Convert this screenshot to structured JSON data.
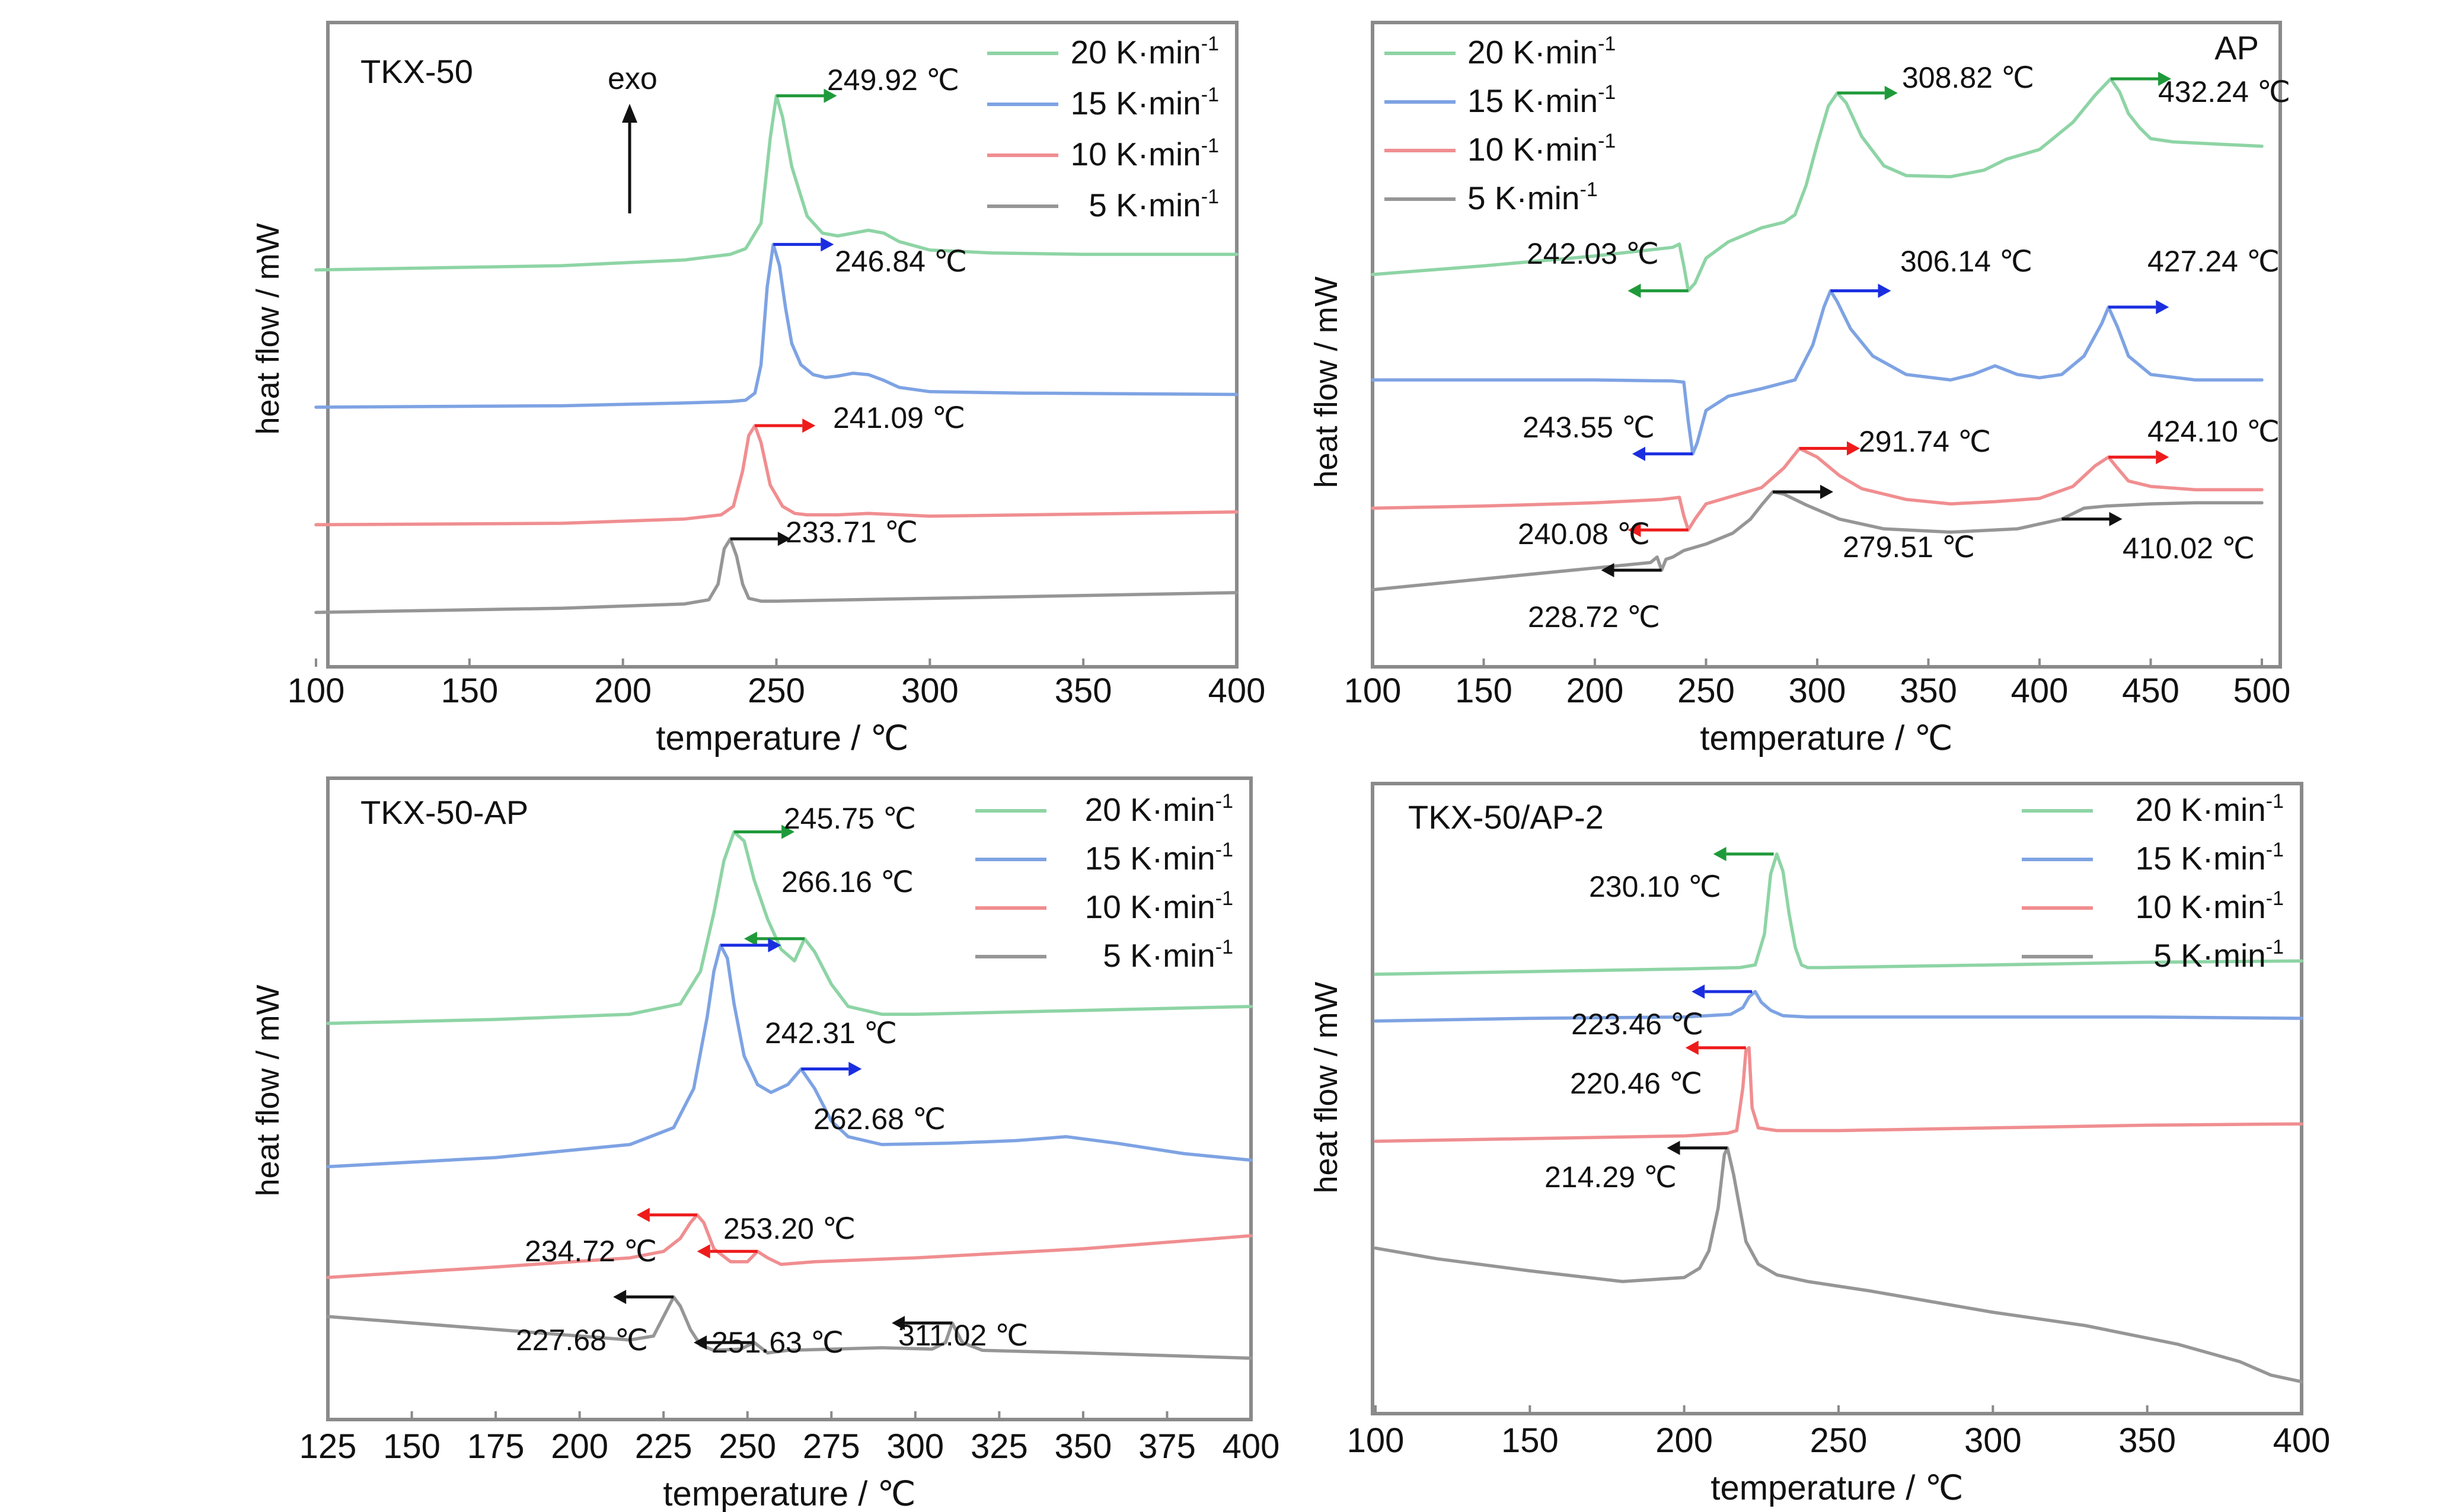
{
  "chart_data": [
    {
      "type": "line",
      "title": "TKX-50",
      "xlabel": "temperature / ℃",
      "ylabel": "heat flow / mW",
      "xlim": [
        100,
        400
      ],
      "xticks": [
        100,
        150,
        200,
        250,
        300,
        350,
        400
      ],
      "legend_position": "top-right",
      "exo_label": "exo",
      "series": [
        {
          "name": "20 K·min-1",
          "color": "#8ed4a5",
          "x": [
            100,
            180,
            220,
            235,
            240,
            245,
            248,
            250,
            252,
            255,
            260,
            265,
            270,
            275,
            280,
            285,
            290,
            300,
            320,
            350,
            400
          ],
          "y": [
            2.72,
            2.75,
            2.79,
            2.83,
            2.87,
            3.05,
            3.65,
            3.95,
            3.8,
            3.45,
            3.1,
            2.98,
            2.96,
            2.98,
            3.0,
            2.98,
            2.92,
            2.86,
            2.84,
            2.83,
            2.83
          ]
        },
        {
          "name": "15 K·min-1",
          "color": "#7ea3e3",
          "x": [
            100,
            180,
            220,
            235,
            240,
            243,
            245,
            247,
            249,
            251,
            253,
            255,
            258,
            262,
            266,
            270,
            275,
            280,
            285,
            290,
            300,
            330,
            400
          ],
          "y": [
            1.75,
            1.76,
            1.78,
            1.79,
            1.8,
            1.85,
            2.05,
            2.6,
            2.9,
            2.75,
            2.45,
            2.2,
            2.05,
            1.98,
            1.96,
            1.97,
            1.99,
            1.98,
            1.94,
            1.89,
            1.86,
            1.85,
            1.84
          ]
        },
        {
          "name": "10 K·min-1",
          "color": "#f08e90",
          "x": [
            100,
            180,
            220,
            232,
            236,
            239,
            241,
            243,
            245,
            248,
            252,
            256,
            260,
            270,
            280,
            300,
            400
          ],
          "y": [
            0.92,
            0.93,
            0.96,
            0.99,
            1.05,
            1.3,
            1.55,
            1.62,
            1.5,
            1.2,
            1.05,
            1.0,
            0.99,
            0.99,
            1.0,
            0.98,
            1.01
          ]
        },
        {
          "name": "5 K·min-1",
          "color": "#969696",
          "x": [
            100,
            180,
            220,
            228,
            231,
            233,
            235,
            237,
            239,
            241,
            245,
            250,
            300,
            400
          ],
          "y": [
            0.3,
            0.33,
            0.36,
            0.39,
            0.5,
            0.75,
            0.82,
            0.7,
            0.5,
            0.4,
            0.38,
            0.38,
            0.4,
            0.44
          ]
        }
      ],
      "annotations": [
        {
          "text": "249.92 ℃",
          "x": 250,
          "y": 3.95,
          "series": "20 K·min-1"
        },
        {
          "text": "246.84 ℃",
          "x": 249,
          "y": 2.9,
          "series": "15 K·min-1"
        },
        {
          "text": "241.09 ℃",
          "x": 243,
          "y": 1.62,
          "series": "10 K·min-1"
        },
        {
          "text": "233.71 ℃",
          "x": 235,
          "y": 0.82,
          "series": "5 K·min-1"
        }
      ]
    },
    {
      "type": "line",
      "title": "AP",
      "xlabel": "temperature / ℃",
      "ylabel": "heat flow / mW",
      "xlim": [
        100,
        500
      ],
      "xticks": [
        100,
        150,
        200,
        250,
        300,
        350,
        400,
        450,
        500
      ],
      "legend_position": "top-left",
      "series": [
        {
          "name": "20 K·min-1",
          "color": "#8ed4a5",
          "x": [
            100,
            150,
            200,
            235,
            238,
            240,
            242,
            245,
            250,
            260,
            275,
            285,
            290,
            295,
            300,
            305,
            309,
            313,
            320,
            330,
            340,
            360,
            375,
            385,
            400,
            415,
            425,
            432,
            436,
            440,
            445,
            450,
            460,
            480,
            500
          ],
          "y": [
            2.9,
            2.98,
            3.07,
            3.15,
            3.18,
            2.98,
            2.75,
            2.82,
            3.05,
            3.2,
            3.33,
            3.38,
            3.45,
            3.72,
            4.1,
            4.45,
            4.57,
            4.48,
            4.17,
            3.9,
            3.81,
            3.8,
            3.86,
            3.96,
            4.05,
            4.3,
            4.55,
            4.7,
            4.58,
            4.38,
            4.25,
            4.15,
            4.12,
            4.1,
            4.08
          ]
        },
        {
          "name": "15 K·min-1",
          "color": "#7ea3e3",
          "x": [
            100,
            150,
            200,
            235,
            240,
            242,
            244,
            246,
            250,
            260,
            275,
            290,
            298,
            303,
            306,
            309,
            315,
            325,
            340,
            360,
            370,
            380,
            390,
            400,
            410,
            420,
            428,
            431,
            435,
            440,
            450,
            470,
            500
          ],
          "y": [
            1.93,
            1.93,
            1.93,
            1.92,
            1.91,
            1.55,
            1.25,
            1.35,
            1.65,
            1.78,
            1.85,
            1.93,
            2.25,
            2.6,
            2.75,
            2.65,
            2.4,
            2.15,
            1.98,
            1.93,
            1.98,
            2.06,
            1.98,
            1.95,
            1.98,
            2.15,
            2.45,
            2.6,
            2.42,
            2.15,
            1.98,
            1.93,
            1.93
          ]
        },
        {
          "name": "10 K·min-1",
          "color": "#f08e90",
          "x": [
            100,
            150,
            200,
            230,
            238,
            240,
            242,
            245,
            250,
            260,
            275,
            285,
            292,
            300,
            310,
            320,
            340,
            360,
            380,
            400,
            415,
            425,
            431,
            435,
            440,
            450,
            470,
            500
          ],
          "y": [
            0.75,
            0.77,
            0.8,
            0.83,
            0.85,
            0.68,
            0.55,
            0.65,
            0.79,
            0.85,
            0.94,
            1.12,
            1.3,
            1.22,
            1.05,
            0.93,
            0.83,
            0.79,
            0.81,
            0.84,
            0.95,
            1.14,
            1.22,
            1.12,
            1.0,
            0.95,
            0.92,
            0.92
          ]
        },
        {
          "name": "5 K·min-1",
          "color": "#969696",
          "x": [
            100,
            150,
            200,
            225,
            228,
            230,
            232,
            235,
            240,
            250,
            262,
            270,
            275,
            280,
            285,
            295,
            310,
            330,
            360,
            390,
            410,
            420,
            430,
            450,
            470,
            500
          ],
          "y": [
            0.0,
            0.1,
            0.2,
            0.25,
            0.3,
            0.18,
            0.28,
            0.3,
            0.36,
            0.42,
            0.52,
            0.65,
            0.78,
            0.9,
            0.88,
            0.78,
            0.65,
            0.56,
            0.53,
            0.56,
            0.65,
            0.75,
            0.77,
            0.79,
            0.8,
            0.8
          ]
        }
      ],
      "annotations": [
        {
          "text": "308.82 ℃",
          "x": 309,
          "y": 4.57,
          "series": "20 K·min-1"
        },
        {
          "text": "432.24 ℃",
          "x": 432,
          "y": 4.7,
          "series": "20 K·min-1"
        },
        {
          "text": "242.03 ℃",
          "x": 242,
          "y": 2.75,
          "series": "20 K·min-1"
        },
        {
          "text": "306.14 ℃",
          "x": 306,
          "y": 2.75,
          "series": "15 K·min-1"
        },
        {
          "text": "427.24 ℃",
          "x": 431,
          "y": 2.6,
          "series": "15 K·min-1"
        },
        {
          "text": "243.55 ℃",
          "x": 244,
          "y": 1.25,
          "series": "15 K·min-1"
        },
        {
          "text": "291.74 ℃",
          "x": 292,
          "y": 1.3,
          "series": "10 K·min-1"
        },
        {
          "text": "424.10 ℃",
          "x": 431,
          "y": 1.22,
          "series": "10 K·min-1"
        },
        {
          "text": "240.08 ℃",
          "x": 242,
          "y": 0.55,
          "series": "10 K·min-1"
        },
        {
          "text": "279.51 ℃",
          "x": 280,
          "y": 0.9,
          "series": "5 K·min-1"
        },
        {
          "text": "410.02 ℃",
          "x": 410,
          "y": 0.65,
          "series": "5 K·min-1"
        },
        {
          "text": "228.72 ℃",
          "x": 230,
          "y": 0.18,
          "series": "5 K·min-1"
        }
      ]
    },
    {
      "type": "line",
      "title": "TKX-50-AP",
      "xlabel": "temperature / ℃",
      "ylabel": "heat flow / mW",
      "xlim": [
        125,
        400
      ],
      "xticks": [
        125,
        150,
        175,
        200,
        225,
        250,
        275,
        300,
        325,
        350,
        375,
        400
      ],
      "legend_position": "top-right",
      "series": [
        {
          "name": "20 K·min-1",
          "color": "#8ed4a5",
          "x": [
            125,
            175,
            215,
            230,
            236,
            240,
            243,
            246,
            249,
            252,
            256,
            260,
            264,
            267,
            270,
            275,
            280,
            290,
            300,
            350,
            400
          ],
          "y": [
            2.95,
            2.98,
            3.02,
            3.1,
            3.35,
            3.8,
            4.2,
            4.42,
            4.35,
            4.05,
            3.75,
            3.52,
            3.43,
            3.6,
            3.5,
            3.25,
            3.08,
            3.02,
            3.02,
            3.05,
            3.08
          ]
        },
        {
          "name": "15 K·min-1",
          "color": "#7ea3e3",
          "x": [
            125,
            175,
            215,
            228,
            234,
            238,
            240,
            242,
            244,
            246,
            249,
            253,
            257,
            262,
            266,
            270,
            275,
            280,
            290,
            310,
            330,
            345,
            360,
            380,
            400
          ],
          "y": [
            1.85,
            1.92,
            2.02,
            2.15,
            2.45,
            3.0,
            3.35,
            3.55,
            3.45,
            3.1,
            2.7,
            2.48,
            2.42,
            2.48,
            2.6,
            2.45,
            2.2,
            2.08,
            2.02,
            2.03,
            2.05,
            2.08,
            2.03,
            1.95,
            1.9
          ]
        },
        {
          "name": "10 K·min-1",
          "color": "#f08e90",
          "x": [
            125,
            175,
            215,
            225,
            230,
            233,
            235,
            237,
            240,
            245,
            250,
            253,
            256,
            260,
            270,
            300,
            350,
            400
          ],
          "y": [
            1.0,
            1.08,
            1.15,
            1.2,
            1.3,
            1.42,
            1.48,
            1.42,
            1.22,
            1.12,
            1.12,
            1.2,
            1.15,
            1.1,
            1.12,
            1.15,
            1.22,
            1.32
          ]
        },
        {
          "name": "5 K·min-1",
          "color": "#969696",
          "x": [
            125,
            175,
            215,
            222,
            225,
            228,
            230,
            233,
            236,
            240,
            248,
            252,
            256,
            262,
            290,
            305,
            309,
            311,
            314,
            320,
            350,
            400
          ],
          "y": [
            0.7,
            0.6,
            0.52,
            0.55,
            0.7,
            0.85,
            0.78,
            0.6,
            0.48,
            0.44,
            0.45,
            0.5,
            0.42,
            0.44,
            0.46,
            0.45,
            0.5,
            0.65,
            0.5,
            0.44,
            0.42,
            0.38
          ]
        }
      ],
      "annotations": [
        {
          "text": "245.75 ℃",
          "x": 246,
          "y": 4.42,
          "series": "20 K·min-1"
        },
        {
          "text": "266.16 ℃",
          "x": 267,
          "y": 3.6,
          "series": "20 K·min-1"
        },
        {
          "text": "242.31 ℃",
          "x": 242,
          "y": 3.55,
          "series": "15 K·min-1"
        },
        {
          "text": "262.68 ℃",
          "x": 266,
          "y": 2.6,
          "series": "15 K·min-1"
        },
        {
          "text": "234.72 ℃",
          "x": 235,
          "y": 1.48,
          "series": "10 K·min-1"
        },
        {
          "text": "253.20 ℃",
          "x": 253,
          "y": 1.2,
          "series": "10 K·min-1"
        },
        {
          "text": "227.68 ℃",
          "x": 228,
          "y": 0.85,
          "series": "5 K·min-1"
        },
        {
          "text": "251.63 ℃",
          "x": 252,
          "y": 0.5,
          "series": "5 K·min-1"
        },
        {
          "text": "311.02 ℃",
          "x": 311,
          "y": 0.65,
          "series": "5 K·min-1"
        }
      ]
    },
    {
      "type": "line",
      "title": "TKX-50/AP-2",
      "xlabel": "temperature / ℃",
      "ylabel": "heat flow / mW",
      "xlim": [
        100,
        400
      ],
      "xticks": [
        100,
        150,
        200,
        250,
        300,
        350,
        400
      ],
      "legend_position": "top-right",
      "series": [
        {
          "name": "20 K·min-1",
          "color": "#8ed4a5",
          "x": [
            100,
            150,
            200,
            218,
            223,
            226,
            228,
            230,
            232,
            234,
            236,
            238,
            240,
            245,
            300,
            350,
            400
          ],
          "y": [
            3.05,
            3.07,
            3.09,
            3.1,
            3.12,
            3.35,
            3.8,
            3.95,
            3.82,
            3.5,
            3.25,
            3.12,
            3.1,
            3.1,
            3.12,
            3.14,
            3.15
          ]
        },
        {
          "name": "15 K·min-1",
          "color": "#7ea3e3",
          "x": [
            100,
            150,
            200,
            215,
            219,
            221,
            223,
            225,
            228,
            232,
            240,
            260,
            300,
            350,
            400
          ],
          "y": [
            2.7,
            2.72,
            2.73,
            2.75,
            2.8,
            2.88,
            2.92,
            2.84,
            2.78,
            2.74,
            2.73,
            2.73,
            2.73,
            2.73,
            2.72
          ]
        },
        {
          "name": "10 K·min-1",
          "color": "#f08e90",
          "x": [
            100,
            150,
            200,
            214,
            217,
            219,
            220,
            221,
            222,
            224,
            230,
            250,
            300,
            350,
            400
          ],
          "y": [
            1.8,
            1.82,
            1.84,
            1.86,
            1.88,
            2.2,
            2.48,
            2.5,
            2.05,
            1.9,
            1.88,
            1.88,
            1.9,
            1.92,
            1.93
          ]
        },
        {
          "name": "5 K·min-1",
          "color": "#969696",
          "x": [
            100,
            120,
            150,
            180,
            200,
            205,
            208,
            211,
            213,
            214,
            216,
            218,
            220,
            224,
            230,
            240,
            260,
            280,
            300,
            330,
            360,
            380,
            390,
            400
          ],
          "y": [
            1.0,
            0.92,
            0.83,
            0.75,
            0.78,
            0.85,
            0.98,
            1.3,
            1.7,
            1.75,
            1.55,
            1.3,
            1.05,
            0.88,
            0.8,
            0.75,
            0.68,
            0.6,
            0.52,
            0.42,
            0.28,
            0.15,
            0.05,
            0.0
          ]
        }
      ],
      "annotations": [
        {
          "text": "230.10 ℃",
          "x": 229,
          "y": 3.95,
          "series": "20 K·min-1"
        },
        {
          "text": "223.46 ℃",
          "x": 222,
          "y": 2.92,
          "series": "15 K·min-1"
        },
        {
          "text": "220.46 ℃",
          "x": 220,
          "y": 2.5,
          "series": "10 K·min-1"
        },
        {
          "text": "214.29 ℃",
          "x": 214,
          "y": 1.75,
          "series": "5 K·min-1"
        }
      ]
    }
  ]
}
